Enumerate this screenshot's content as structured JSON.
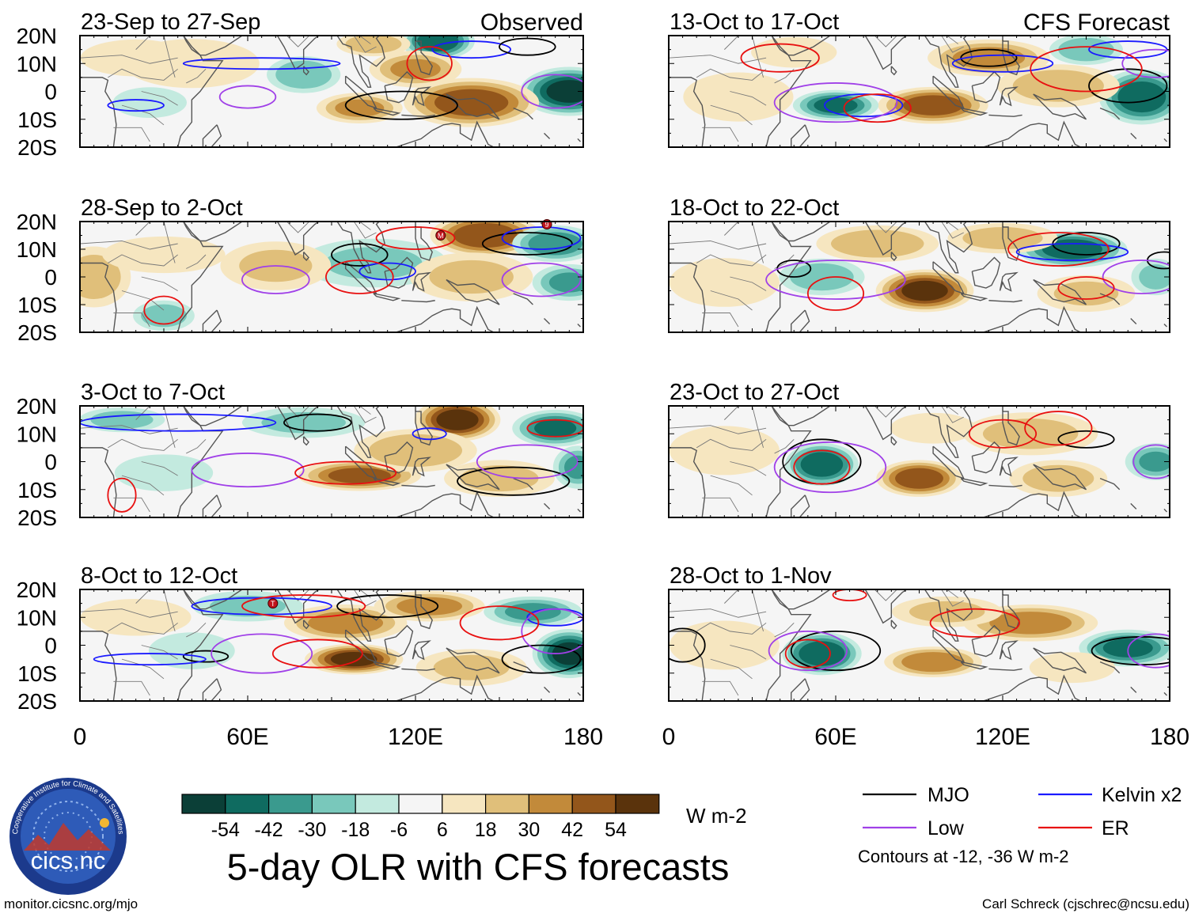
{
  "title": "5-day OLR with CFS forecasts",
  "left_column_label": "Observed",
  "right_column_label": "CFS Forecast",
  "panels": [
    {
      "col": 0,
      "row": 0,
      "period": "23-Sep to 27-Sep"
    },
    {
      "col": 0,
      "row": 1,
      "period": "28-Sep to 2-Oct"
    },
    {
      "col": 0,
      "row": 2,
      "period": "3-Oct to 7-Oct"
    },
    {
      "col": 0,
      "row": 3,
      "period": "8-Oct to 12-Oct"
    },
    {
      "col": 1,
      "row": 0,
      "period": "13-Oct to 17-Oct"
    },
    {
      "col": 1,
      "row": 1,
      "period": "18-Oct to 22-Oct"
    },
    {
      "col": 1,
      "row": 2,
      "period": "23-Oct to 27-Oct"
    },
    {
      "col": 1,
      "row": 3,
      "period": "28-Oct to 1-Nov"
    }
  ],
  "lat_ticks": [
    "20N",
    "10N",
    "0",
    "10S",
    "20S"
  ],
  "lon_ticks": [
    "0",
    "60E",
    "120E",
    "180"
  ],
  "colorbar": {
    "colors": [
      "#0b3f37",
      "#0f6b60",
      "#3a9a8e",
      "#79c8bb",
      "#c3eadf",
      "#f5f5f5",
      "#f6e6c0",
      "#e0bf7a",
      "#c28a3a",
      "#93561b",
      "#5a330c"
    ],
    "labels": [
      "-54",
      "-42",
      "-30",
      "-18",
      "-6",
      "6",
      "18",
      "30",
      "42",
      "54"
    ],
    "units": "W m-2"
  },
  "legend": {
    "items": [
      {
        "label": "MJO",
        "color": "#000000"
      },
      {
        "label": "Kelvin x2",
        "color": "#1a1aff"
      },
      {
        "label": "Low",
        "color": "#a040e8"
      },
      {
        "label": "ER",
        "color": "#e81010"
      }
    ],
    "contour_note": "Contours at -12, -36 W m-2"
  },
  "logo": {
    "text": "cics.nc",
    "ring_text": "Cooperative Institute for Climate and Satellites"
  },
  "footer": {
    "url": "monitor.cicsnc.org/mjo",
    "credit": "Carl Schreck (cjschrec@ncsu.edu)"
  },
  "storm_markers": [
    {
      "panel": 1,
      "symbol": "M",
      "lon": 129,
      "lat": 15
    },
    {
      "panel": 1,
      "symbol": "9",
      "lon": 167,
      "lat": 19
    },
    {
      "panel": 3,
      "symbol": "T",
      "lon": 69,
      "lat": 15
    }
  ],
  "olr_anomalies": [
    [
      {
        "lon": 128,
        "lat": 18,
        "value": -50,
        "rlon": 12,
        "rlat": 6
      },
      {
        "lon": 80,
        "lat": 6,
        "value": -28,
        "rlon": 12,
        "rlat": 6
      },
      {
        "lon": 175,
        "lat": 0,
        "value": -55,
        "rlon": 16,
        "rlat": 8
      },
      {
        "lon": 25,
        "lat": -4,
        "value": -14,
        "rlon": 12,
        "rlat": 5
      },
      {
        "lon": 140,
        "lat": -4,
        "value": 48,
        "rlon": 22,
        "rlat": 8
      },
      {
        "lon": 120,
        "lat": 8,
        "value": 30,
        "rlon": 15,
        "rlat": 6
      },
      {
        "lon": 100,
        "lat": -6,
        "value": 32,
        "rlon": 14,
        "rlat": 5
      },
      {
        "lon": 105,
        "lat": 17,
        "value": 28,
        "rlon": 12,
        "rlat": 4
      },
      {
        "lon": 40,
        "lat": 10,
        "value": 14,
        "rlon": 22,
        "rlat": 8
      },
      {
        "lon": 20,
        "lat": 12,
        "value": 12,
        "rlon": 18,
        "rlat": 6
      }
    ],
    [
      {
        "lon": 145,
        "lat": 15,
        "value": 52,
        "rlon": 18,
        "rlat": 7
      },
      {
        "lon": 170,
        "lat": 12,
        "value": -38,
        "rlon": 14,
        "rlat": 6
      },
      {
        "lon": 175,
        "lat": -2,
        "value": -30,
        "rlon": 12,
        "rlat": 6
      },
      {
        "lon": 105,
        "lat": 5,
        "value": -18,
        "rlon": 24,
        "rlat": 8
      },
      {
        "lon": 30,
        "lat": -14,
        "value": -26,
        "rlon": 10,
        "rlat": 5
      },
      {
        "lon": 5,
        "lat": 0,
        "value": 24,
        "rlon": 12,
        "rlat": 10
      },
      {
        "lon": 70,
        "lat": 4,
        "value": 18,
        "rlon": 18,
        "rlat": 8
      },
      {
        "lon": 140,
        "lat": 0,
        "value": 20,
        "rlon": 20,
        "rlat": 8
      },
      {
        "lon": 30,
        "lat": 8,
        "value": 10,
        "rlon": 20,
        "rlat": 6
      }
    ],
    [
      {
        "lon": 135,
        "lat": 15,
        "value": 58,
        "rlon": 14,
        "rlat": 7
      },
      {
        "lon": 100,
        "lat": -5,
        "value": 44,
        "rlon": 20,
        "rlat": 5
      },
      {
        "lon": 120,
        "lat": 4,
        "value": 28,
        "rlon": 20,
        "rlat": 7
      },
      {
        "lon": 170,
        "lat": 12,
        "value": -42,
        "rlon": 14,
        "rlat": 6
      },
      {
        "lon": 178,
        "lat": -2,
        "value": -30,
        "rlon": 8,
        "rlat": 7
      },
      {
        "lon": 80,
        "lat": 14,
        "value": -20,
        "rlon": 20,
        "rlat": 5
      },
      {
        "lon": 15,
        "lat": 15,
        "value": -24,
        "rlon": 14,
        "rlat": 4
      },
      {
        "lon": 150,
        "lat": -6,
        "value": 22,
        "rlon": 18,
        "rlat": 6
      },
      {
        "lon": 30,
        "lat": -4,
        "value": -10,
        "rlon": 16,
        "rlat": 6
      }
    ],
    [
      {
        "lon": 98,
        "lat": -5,
        "value": 56,
        "rlon": 16,
        "rlat": 5
      },
      {
        "lon": 95,
        "lat": 8,
        "value": 36,
        "rlon": 20,
        "rlat": 6
      },
      {
        "lon": 125,
        "lat": 14,
        "value": 34,
        "rlon": 18,
        "rlat": 5
      },
      {
        "lon": 175,
        "lat": -3,
        "value": -55,
        "rlon": 12,
        "rlat": 8
      },
      {
        "lon": 162,
        "lat": 12,
        "value": -32,
        "rlon": 16,
        "rlat": 5
      },
      {
        "lon": 60,
        "lat": 14,
        "value": -20,
        "rlon": 18,
        "rlat": 5
      },
      {
        "lon": 40,
        "lat": -2,
        "value": -14,
        "rlon": 14,
        "rlat": 6
      },
      {
        "lon": 140,
        "lat": -8,
        "value": 20,
        "rlon": 18,
        "rlat": 6
      },
      {
        "lon": 20,
        "lat": 10,
        "value": 10,
        "rlon": 18,
        "rlat": 6
      }
    ],
    [
      {
        "lon": 95,
        "lat": -5,
        "value": 48,
        "rlon": 18,
        "rlat": 6
      },
      {
        "lon": 60,
        "lat": -5,
        "value": -44,
        "rlon": 14,
        "rlat": 5
      },
      {
        "lon": 170,
        "lat": -2,
        "value": -50,
        "rlon": 14,
        "rlat": 9
      },
      {
        "lon": 150,
        "lat": 15,
        "value": -28,
        "rlon": 12,
        "rlat": 5
      },
      {
        "lon": 115,
        "lat": 12,
        "value": 34,
        "rlon": 20,
        "rlat": 6
      },
      {
        "lon": 140,
        "lat": 2,
        "value": 26,
        "rlon": 20,
        "rlat": 7
      },
      {
        "lon": 25,
        "lat": -2,
        "value": 14,
        "rlon": 18,
        "rlat": 8
      },
      {
        "lon": 45,
        "lat": 14,
        "value": 12,
        "rlon": 14,
        "rlat": 5
      }
    ],
    [
      {
        "lon": 92,
        "lat": -5,
        "value": 56,
        "rlon": 16,
        "rlat": 7
      },
      {
        "lon": 145,
        "lat": 10,
        "value": -48,
        "rlon": 18,
        "rlat": 6
      },
      {
        "lon": 55,
        "lat": 0,
        "value": -26,
        "rlon": 14,
        "rlat": 6
      },
      {
        "lon": 75,
        "lat": 12,
        "value": 28,
        "rlon": 20,
        "rlat": 6
      },
      {
        "lon": 120,
        "lat": 14,
        "value": 24,
        "rlon": 18,
        "rlat": 5
      },
      {
        "lon": 175,
        "lat": 0,
        "value": -20,
        "rlon": 8,
        "rlat": 6
      },
      {
        "lon": 150,
        "lat": -6,
        "value": 18,
        "rlon": 16,
        "rlat": 6
      },
      {
        "lon": 20,
        "lat": -2,
        "value": 10,
        "rlon": 18,
        "rlat": 8
      }
    ],
    [
      {
        "lon": 55,
        "lat": -1,
        "value": -52,
        "rlon": 12,
        "rlat": 7
      },
      {
        "lon": 90,
        "lat": -6,
        "value": 50,
        "rlon": 14,
        "rlat": 6
      },
      {
        "lon": 175,
        "lat": 0,
        "value": -30,
        "rlon": 10,
        "rlat": 6
      },
      {
        "lon": 130,
        "lat": 10,
        "value": 22,
        "rlon": 22,
        "rlat": 7
      },
      {
        "lon": 140,
        "lat": -6,
        "value": 24,
        "rlon": 16,
        "rlat": 6
      },
      {
        "lon": 20,
        "lat": 4,
        "value": 8,
        "rlon": 18,
        "rlat": 8
      },
      {
        "lon": 95,
        "lat": 12,
        "value": 14,
        "rlon": 14,
        "rlat": 5
      }
    ],
    [
      {
        "lon": 55,
        "lat": -3,
        "value": -52,
        "rlon": 13,
        "rlat": 7
      },
      {
        "lon": 165,
        "lat": -1,
        "value": -44,
        "rlon": 16,
        "rlat": 6
      },
      {
        "lon": 95,
        "lat": -6,
        "value": 40,
        "rlon": 16,
        "rlat": 5
      },
      {
        "lon": 130,
        "lat": 8,
        "value": 36,
        "rlon": 22,
        "rlat": 6
      },
      {
        "lon": 100,
        "lat": 12,
        "value": 20,
        "rlon": 18,
        "rlat": 5
      },
      {
        "lon": 20,
        "lat": 0,
        "value": 8,
        "rlon": 18,
        "rlat": 8
      },
      {
        "lon": 145,
        "lat": -8,
        "value": 16,
        "rlon": 14,
        "rlat": 5
      }
    ]
  ],
  "contours": [
    [
      {
        "type": "MJO",
        "lon": 115,
        "lat": -5,
        "rlon": 20,
        "rlat": 5
      },
      {
        "type": "Kelvin x2",
        "lon": 65,
        "lat": 10,
        "rlon": 28,
        "rlat": 2
      },
      {
        "type": "Kelvin x2",
        "lon": 20,
        "lat": -5,
        "rlon": 10,
        "rlat": 2
      },
      {
        "type": "Kelvin x2",
        "lon": 140,
        "lat": 15,
        "rlon": 14,
        "rlat": 3
      },
      {
        "type": "Low",
        "lon": 60,
        "lat": -2,
        "rlon": 10,
        "rlat": 4
      },
      {
        "type": "Low",
        "lon": 170,
        "lat": 0,
        "rlon": 12,
        "rlat": 6
      },
      {
        "type": "ER",
        "lon": 125,
        "lat": 10,
        "rlon": 8,
        "rlat": 6
      },
      {
        "type": "MJO",
        "lon": 160,
        "lat": 16,
        "rlon": 10,
        "rlat": 3
      }
    ],
    [
      {
        "type": "MJO",
        "lon": 100,
        "lat": 8,
        "rlon": 10,
        "rlat": 4
      },
      {
        "type": "MJO",
        "lon": 160,
        "lat": 12,
        "rlon": 16,
        "rlat": 4
      },
      {
        "type": "Kelvin x2",
        "lon": 165,
        "lat": 14,
        "rlon": 14,
        "rlat": 4
      },
      {
        "type": "Kelvin x2",
        "lon": 110,
        "lat": 2,
        "rlon": 10,
        "rlat": 3
      },
      {
        "type": "Low",
        "lon": 70,
        "lat": -1,
        "rlon": 12,
        "rlat": 5
      },
      {
        "type": "Low",
        "lon": 165,
        "lat": -1,
        "rlon": 14,
        "rlat": 6
      },
      {
        "type": "ER",
        "lon": 100,
        "lat": 0,
        "rlon": 12,
        "rlat": 6
      },
      {
        "type": "ER",
        "lon": 30,
        "lat": -12,
        "rlon": 7,
        "rlat": 5
      },
      {
        "type": "ER",
        "lon": 120,
        "lat": 14,
        "rlon": 14,
        "rlat": 4
      }
    ],
    [
      {
        "type": "MJO",
        "lon": 155,
        "lat": -7,
        "rlon": 20,
        "rlat": 5
      },
      {
        "type": "MJO",
        "lon": 85,
        "lat": 14,
        "rlon": 12,
        "rlat": 3
      },
      {
        "type": "Kelvin x2",
        "lon": 35,
        "lat": 14,
        "rlon": 35,
        "rlat": 3
      },
      {
        "type": "Kelvin x2",
        "lon": 125,
        "lat": 10,
        "rlon": 6,
        "rlat": 2
      },
      {
        "type": "Low",
        "lon": 60,
        "lat": -3,
        "rlon": 20,
        "rlat": 6
      },
      {
        "type": "Low",
        "lon": 160,
        "lat": 0,
        "rlon": 18,
        "rlat": 6
      },
      {
        "type": "ER",
        "lon": 95,
        "lat": -4,
        "rlon": 18,
        "rlat": 4
      },
      {
        "type": "ER",
        "lon": 15,
        "lat": -12,
        "rlon": 5,
        "rlat": 6
      },
      {
        "type": "ER",
        "lon": 170,
        "lat": 12,
        "rlon": 10,
        "rlat": 3
      }
    ],
    [
      {
        "type": "MJO",
        "lon": 110,
        "lat": 14,
        "rlon": 18,
        "rlat": 4
      },
      {
        "type": "MJO",
        "lon": 165,
        "lat": -5,
        "rlon": 14,
        "rlat": 5
      },
      {
        "type": "MJO",
        "lon": 45,
        "lat": -4,
        "rlon": 8,
        "rlat": 2
      },
      {
        "type": "Kelvin x2",
        "lon": 65,
        "lat": 14,
        "rlon": 25,
        "rlat": 3
      },
      {
        "type": "Kelvin x2",
        "lon": 25,
        "lat": -5,
        "rlon": 20,
        "rlat": 2
      },
      {
        "type": "Kelvin x2",
        "lon": 170,
        "lat": 10,
        "rlon": 10,
        "rlat": 3
      },
      {
        "type": "Low",
        "lon": 65,
        "lat": -3,
        "rlon": 18,
        "rlat": 7
      },
      {
        "type": "Low",
        "lon": 170,
        "lat": 5,
        "rlon": 12,
        "rlat": 8
      },
      {
        "type": "ER",
        "lon": 85,
        "lat": -3,
        "rlon": 16,
        "rlat": 5
      },
      {
        "type": "ER",
        "lon": 80,
        "lat": 14,
        "rlon": 22,
        "rlat": 4
      },
      {
        "type": "ER",
        "lon": 150,
        "lat": 8,
        "rlon": 14,
        "rlat": 6
      }
    ],
    [
      {
        "type": "MJO",
        "lon": 165,
        "lat": 2,
        "rlon": 14,
        "rlat": 6
      },
      {
        "type": "MJO",
        "lon": 115,
        "lat": 12,
        "rlon": 10,
        "rlat": 3
      },
      {
        "type": "Kelvin x2",
        "lon": 70,
        "lat": -5,
        "rlon": 14,
        "rlat": 4
      },
      {
        "type": "Kelvin x2",
        "lon": 120,
        "lat": 10,
        "rlon": 18,
        "rlat": 3
      },
      {
        "type": "Kelvin x2",
        "lon": 165,
        "lat": 15,
        "rlon": 14,
        "rlat": 3
      },
      {
        "type": "Low",
        "lon": 60,
        "lat": -4,
        "rlon": 22,
        "rlat": 7
      },
      {
        "type": "Low",
        "lon": 175,
        "lat": 10,
        "rlon": 12,
        "rlat": 5
      },
      {
        "type": "ER",
        "lon": 75,
        "lat": -6,
        "rlon": 12,
        "rlat": 5
      },
      {
        "type": "ER",
        "lon": 40,
        "lat": 12,
        "rlon": 14,
        "rlat": 5
      },
      {
        "type": "ER",
        "lon": 150,
        "lat": 8,
        "rlon": 20,
        "rlat": 8
      }
    ],
    [
      {
        "type": "MJO",
        "lon": 45,
        "lat": 3,
        "rlon": 6,
        "rlat": 3
      },
      {
        "type": "MJO",
        "lon": 150,
        "lat": 12,
        "rlon": 12,
        "rlat": 4
      },
      {
        "type": "MJO",
        "lon": 178,
        "lat": 6,
        "rlon": 6,
        "rlat": 3
      },
      {
        "type": "Kelvin x2",
        "lon": 145,
        "lat": 9,
        "rlon": 20,
        "rlat": 3
      },
      {
        "type": "Low",
        "lon": 60,
        "lat": -1,
        "rlon": 25,
        "rlat": 7
      },
      {
        "type": "Low",
        "lon": 170,
        "lat": 0,
        "rlon": 14,
        "rlat": 6
      },
      {
        "type": "ER",
        "lon": 60,
        "lat": -6,
        "rlon": 10,
        "rlat": 6
      },
      {
        "type": "ER",
        "lon": 140,
        "lat": 10,
        "rlon": 18,
        "rlat": 6
      },
      {
        "type": "ER",
        "lon": 150,
        "lat": -4,
        "rlon": 10,
        "rlat": 4
      }
    ],
    [
      {
        "type": "MJO",
        "lon": 55,
        "lat": 0,
        "rlon": 14,
        "rlat": 8
      },
      {
        "type": "MJO",
        "lon": 150,
        "lat": 8,
        "rlon": 10,
        "rlat": 3
      },
      {
        "type": "Low",
        "lon": 58,
        "lat": -2,
        "rlon": 20,
        "rlat": 9
      },
      {
        "type": "Low",
        "lon": 175,
        "lat": 0,
        "rlon": 8,
        "rlat": 6
      },
      {
        "type": "ER",
        "lon": 55,
        "lat": -2,
        "rlon": 10,
        "rlat": 6
      },
      {
        "type": "ER",
        "lon": 140,
        "lat": 12,
        "rlon": 12,
        "rlat": 6
      },
      {
        "type": "ER",
        "lon": 120,
        "lat": 10,
        "rlon": 12,
        "rlat": 5
      }
    ],
    [
      {
        "type": "MJO",
        "lon": 60,
        "lat": -2,
        "rlon": 16,
        "rlat": 7
      },
      {
        "type": "MJO",
        "lon": 170,
        "lat": -2,
        "rlon": 18,
        "rlat": 5
      },
      {
        "type": "MJO",
        "lon": 5,
        "lat": 0,
        "rlon": 8,
        "rlat": 6
      },
      {
        "type": "Low",
        "lon": 50,
        "lat": -2,
        "rlon": 14,
        "rlat": 7
      },
      {
        "type": "Low",
        "lon": 175,
        "lat": -2,
        "rlon": 10,
        "rlat": 6
      },
      {
        "type": "ER",
        "lon": 50,
        "lat": -3,
        "rlon": 8,
        "rlat": 5
      },
      {
        "type": "ER",
        "lon": 110,
        "lat": 8,
        "rlon": 16,
        "rlat": 5
      },
      {
        "type": "ER",
        "lon": 65,
        "lat": 18,
        "rlon": 6,
        "rlat": 2
      }
    ]
  ]
}
